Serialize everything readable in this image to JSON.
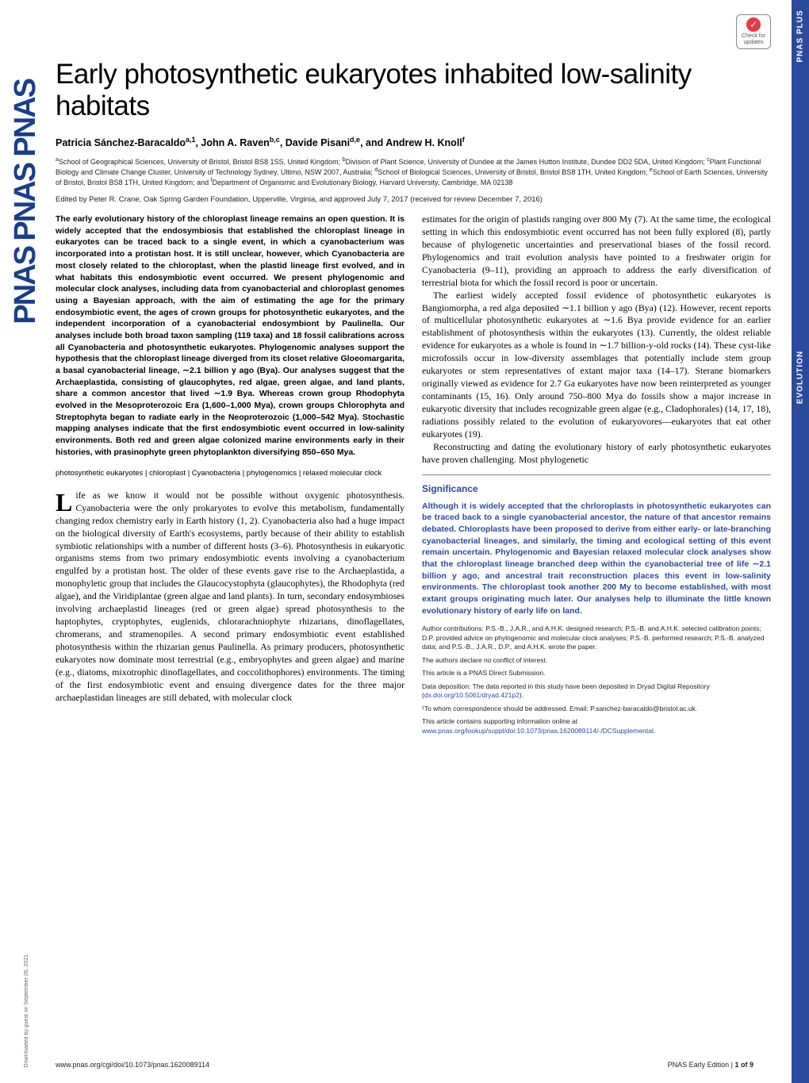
{
  "badge": {
    "check": "✓",
    "line1": "Check for",
    "line2": "updates"
  },
  "side_tab": {
    "label1": "PNAS PLUS",
    "label2": "EVOLUTION"
  },
  "title": "Early photosynthetic eukaryotes inhabited low-salinity habitats",
  "authors_html": "Patricia Sánchez-Baracaldo<sup>a,1</sup>, John A. Raven<sup>b,c</sup>, Davide Pisani<sup>d,e</sup>, and Andrew H. Knoll<sup>f</sup>",
  "affiliations_html": "<sup>a</sup>School of Geographical Sciences, University of Bristol, Bristol BS8 1SS, United Kingdom; <sup>b</sup>Division of Plant Science, University of Dundee at the James Hutton Institute, Dundee DD2 5DA, United Kingdom; <sup>c</sup>Plant Functional Biology and Climate Change Cluster, University of Technology Sydney, Ultimo, NSW 2007, Australia; <sup>d</sup>School of Biological Sciences, University of Bristol, Bristol BS8 1TH, United Kingdom; <sup>e</sup>School of Earth Sciences, University of Bristol, Bristol BS8 1TH, United Kingdom; and <sup>f</sup>Department of Organismic and Evolutionary Biology, Harvard University, Cambridge, MA 02138",
  "edited_by": "Edited by Peter R. Crane, Oak Spring Garden Foundation, Upperville, Virginia, and approved July 7, 2017 (received for review December 7, 2016)",
  "abstract": "The early evolutionary history of the chloroplast lineage remains an open question. It is widely accepted that the endosymbiosis that established the chloroplast lineage in eukaryotes can be traced back to a single event, in which a cyanobacterium was incorporated into a protistan host. It is still unclear, however, which Cyanobacteria are most closely related to the chloroplast, when the plastid lineage first evolved, and in what habitats this endosymbiotic event occurred. We present phylogenomic and molecular clock analyses, including data from cyanobacterial and chloroplast genomes using a Bayesian approach, with the aim of estimating the age for the primary endosymbiotic event, the ages of crown groups for photosynthetic eukaryotes, and the independent incorporation of a cyanobacterial endosymbiont by Paulinella. Our analyses include both broad taxon sampling (119 taxa) and 18 fossil calibrations across all Cyanobacteria and photosynthetic eukaryotes. Phylogenomic analyses support the hypothesis that the chloroplast lineage diverged from its closet relative Gloeomargarita, a basal cyanobacterial lineage, ∼2.1 billion y ago (Bya). Our analyses suggest that the Archaeplastida, consisting of glaucophytes, red algae, green algae, and land plants, share a common ancestor that lived ∼1.9 Bya. Whereas crown group Rhodophyta evolved in the Mesoproterozoic Era (1,600–1,000 Mya), crown groups Chlorophyta and Streptophyta began to radiate early in the Neoproterozoic (1,000–542 Mya). Stochastic mapping analyses indicate that the first endosymbiotic event occurred in low-salinity environments. Both red and green algae colonized marine environments early in their histories, with prasinophyte green phytoplankton diversifying 850–650 Mya.",
  "keywords": "photosynthetic eukaryotes | chloroplast | Cyanobacteria | phylogenomics | relaxed molecular clock",
  "body_p1": "Life as we know it would not be possible without oxygenic photosynthesis. Cyanobacteria were the only prokaryotes to evolve this metabolism, fundamentally changing redox chemistry early in Earth history (1, 2). Cyanobacteria also had a huge impact on the biological diversity of Earth's ecosystems, partly because of their ability to establish symbiotic relationships with a number of different hosts (3–6). Photosynthesis in eukaryotic organisms stems from two primary endosymbiotic events involving a cyanobacterium engulfed by a protistan host. The older of these events gave rise to the Archaeplastida, a monophyletic group that includes the Glaucocystophyta (glaucophytes), the Rhodophyta (red algae), and the Viridiplantae (green algae and land plants). In turn, secondary endosymbioses involving archaeplastid lineages (red or green algae) spread photosynthesis to the haptophytes, cryptophytes, euglenids, chlorarachniophyte rhizarians, dinoflagellates, chromerans, and stramenopiles. A second primary endosymbiotic event established photosynthesis within the rhizarian genus Paulinella. As primary producers, photosynthetic eukaryotes now dominate most terrestrial (e.g., embryophytes and green algae) and marine (e.g., diatoms, mixotrophic dinoflagellates, and coccolithophores) environments. The timing of the first endosymbiotic event and ensuing divergence dates for the three major archaeplastidan lineages are still debated, with molecular clock",
  "body_p2": "estimates for the origin of plastids ranging over 800 My (7). At the same time, the ecological setting in which this endosymbiotic event occurred has not been fully explored (8), partly because of phylogenetic uncertainties and preservational biases of the fossil record. Phylogenomics and trait evolution analysis have pointed to a freshwater origin for Cyanobacteria (9–11), providing an approach to address the early diversification of terrestrial biota for which the fossil record is poor or uncertain.",
  "body_p3": "The earliest widely accepted fossil evidence of photosynthetic eukaryotes is Bangiomorpha, a red alga deposited ∼1.1 billion y ago (Bya) (12). However, recent reports of multicellular photosynthetic eukaryotes at ∼1.6 Bya provide evidence for an earlier establishment of photosynthesis within the eukaryotes (13). Currently, the oldest reliable evidence for eukaryotes as a whole is found in ∼1.7 billion-y-old rocks (14). These cyst-like microfossils occur in low-diversity assemblages that potentially include stem group eukaryotes or stem representatives of extant major taxa (14–17). Sterane biomarkers originally viewed as evidence for 2.7 Ga eukaryotes have now been reinterpreted as younger contaminants (15, 16). Only around 750–800 Mya do fossils show a major increase in eukaryotic diversity that includes recognizable green algae (e.g., Cladophorales) (14, 17, 18), radiations possibly related to the evolution of eukaryovores—eukaryotes that eat other eukaryotes (19).",
  "body_p4": "Reconstructing and dating the evolutionary history of early photosynthetic eukaryotes have proven challenging. Most phylogenetic",
  "significance": {
    "title": "Significance",
    "text": "Although it is widely accepted that the chrloroplasts in photosynthetic eukaryotes can be traced back to a single cyanobacterial ancestor, the nature of that ancestor remains debated. Chloroplasts have been proposed to derive from either early- or late-branching cyanobacterial lineages, and similarly, the timing and ecological setting of this event remain uncertain. Phylogenomic and Bayesian relaxed molecular clock analyses show that the chloroplast lineage branched deep within the cyanobacterial tree of life ∼2.1 billion y ago, and ancestral trait reconstruction places this event in low-salinity environments. The chloroplast took another 200 My to become established, with most extant groups originating much later. Our analyses help to illuminate the little known evolutionary history of early life on land."
  },
  "footnotes": {
    "contributions": "Author contributions: P.S.-B., J.A.R., and A.H.K. designed research; P.S.-B. and A.H.K. selected calibration points; D.P. provided advice on phylogenomic and molecular clock analyses; P.S.-B. performed research; P.S.-B. analyzed data; and P.S.-B., J.A.R., D.P., and A.H.K. wrote the paper.",
    "conflict": "The authors declare no conflict of interest.",
    "submission": "This article is a PNAS Direct Submission.",
    "data_deposition": "Data deposition: The data reported in this study have been deposited in Dryad Digital Repository (",
    "data_link": "dx.doi.org/10.5061/dryad.421p2",
    "data_close": ").",
    "correspondence": "¹To whom correspondence should be addressed. Email: P.sanchez-baracaldo@bristol.ac.uk.",
    "supporting_pre": "This article contains supporting information online at ",
    "supporting_link": "www.pnas.org/lookup/suppl/doi:10.1073/pnas.1620089114/-/DCSupplemental",
    "supporting_post": "."
  },
  "footer": {
    "left": "www.pnas.org/cgi/doi/10.1073/pnas.1620089114",
    "right_pre": "PNAS Early Edition | ",
    "right_page": "1 of 9"
  },
  "download_note": "Downloaded by guest on September 26, 2021",
  "pnas_logo": "PNAS"
}
